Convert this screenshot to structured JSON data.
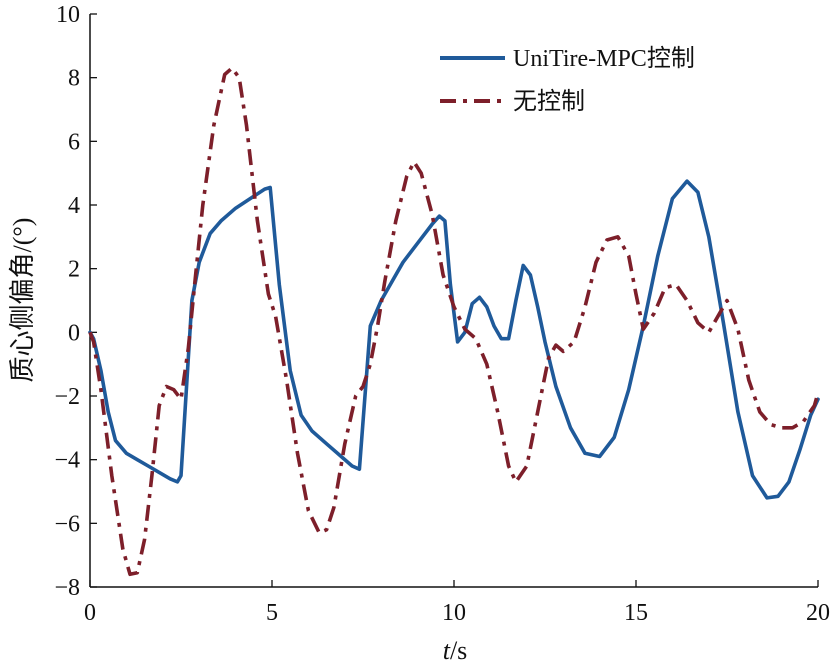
{
  "chart_data": {
    "type": "line",
    "title": "",
    "xlabel_italic": "t",
    "xlabel_unit": "/s",
    "ylabel": "质心侧偏角/(°)",
    "xlim": [
      0,
      20
    ],
    "ylim": [
      -8,
      10
    ],
    "xticks": [
      0,
      5,
      10,
      15,
      20
    ],
    "yticks": [
      -8,
      -6,
      -4,
      -2,
      0,
      2,
      4,
      6,
      8,
      10
    ],
    "ytick_labels": [
      "−8",
      "−6",
      "−4",
      "−2",
      "0",
      "2",
      "4",
      "6",
      "8",
      "10"
    ],
    "grid": false,
    "legend_position": "top-right",
    "series": [
      {
        "name": "UniTire-MPC控制",
        "color": "#1f5a9a",
        "style": "solid",
        "x": [
          0,
          0.1,
          0.3,
          0.5,
          0.7,
          1.0,
          1.3,
          1.6,
          1.9,
          2.2,
          2.4,
          2.5,
          2.8,
          3.0,
          3.3,
          3.6,
          4.0,
          4.4,
          4.8,
          4.95,
          5.2,
          5.5,
          5.8,
          6.1,
          6.5,
          6.9,
          7.2,
          7.4,
          7.7,
          8.0,
          8.3,
          8.6,
          9.0,
          9.4,
          9.6,
          9.75,
          9.9,
          10.1,
          10.3,
          10.5,
          10.7,
          10.9,
          11.1,
          11.3,
          11.5,
          11.7,
          11.9,
          12.1,
          12.3,
          12.5,
          12.8,
          13.2,
          13.6,
          14.0,
          14.4,
          14.8,
          15.2,
          15.6,
          16.0,
          16.4,
          16.7,
          17.0,
          17.4,
          17.8,
          18.2,
          18.6,
          18.9,
          19.2,
          19.5,
          19.8,
          20.0
        ],
        "y": [
          0,
          -0.2,
          -1.2,
          -2.5,
          -3.4,
          -3.8,
          -4.0,
          -4.2,
          -4.4,
          -4.6,
          -4.7,
          -4.5,
          1.0,
          2.2,
          3.1,
          3.5,
          3.9,
          4.2,
          4.5,
          4.55,
          1.5,
          -1.2,
          -2.6,
          -3.1,
          -3.5,
          -3.9,
          -4.2,
          -4.3,
          0.2,
          1.0,
          1.6,
          2.2,
          2.8,
          3.4,
          3.65,
          3.5,
          1.5,
          -0.3,
          0.0,
          0.9,
          1.1,
          0.8,
          0.2,
          -0.2,
          -0.2,
          1.0,
          2.1,
          1.8,
          0.8,
          -0.3,
          -1.7,
          -3.0,
          -3.8,
          -3.9,
          -3.3,
          -1.8,
          0.2,
          2.4,
          4.2,
          4.75,
          4.4,
          3.0,
          0.3,
          -2.5,
          -4.5,
          -5.2,
          -5.15,
          -4.7,
          -3.7,
          -2.6,
          -2.1
        ]
      },
      {
        "name": "无控制",
        "color": "#7d1f2a",
        "style": "dashdot",
        "x": [
          0,
          0.1,
          0.3,
          0.6,
          0.9,
          1.1,
          1.3,
          1.5,
          1.7,
          1.9,
          2.1,
          2.3,
          2.5,
          2.7,
          2.9,
          3.1,
          3.4,
          3.7,
          3.9,
          4.1,
          4.3,
          4.6,
          4.9,
          5.1,
          5.4,
          5.7,
          6.0,
          6.3,
          6.5,
          6.7,
          7.0,
          7.3,
          7.5,
          7.7,
          7.9,
          8.1,
          8.4,
          8.7,
          8.9,
          9.1,
          9.4,
          9.7,
          10.0,
          10.3,
          10.6,
          10.9,
          11.2,
          11.5,
          11.7,
          12.0,
          12.3,
          12.6,
          12.8,
          13.0,
          13.3,
          13.6,
          13.9,
          14.2,
          14.5,
          14.8,
          15.0,
          15.2,
          15.5,
          15.8,
          16.1,
          16.4,
          16.7,
          17.0,
          17.3,
          17.5,
          17.8,
          18.1,
          18.4,
          18.7,
          19.0,
          19.3,
          19.6,
          19.9,
          20.0
        ],
        "y": [
          0,
          -0.3,
          -1.8,
          -4.5,
          -6.8,
          -7.6,
          -7.55,
          -6.5,
          -4.5,
          -2.3,
          -1.7,
          -1.8,
          -2.1,
          -0.5,
          1.8,
          4.0,
          6.5,
          8.1,
          8.3,
          8.0,
          6.5,
          3.5,
          1.2,
          0.5,
          -1.5,
          -3.8,
          -5.6,
          -6.3,
          -6.2,
          -5.5,
          -3.5,
          -2.0,
          -1.7,
          -1.0,
          0.2,
          1.6,
          3.5,
          4.9,
          5.35,
          5.0,
          3.7,
          1.8,
          0.8,
          0.1,
          -0.2,
          -1.0,
          -2.5,
          -4.2,
          -4.7,
          -4.2,
          -2.5,
          -0.8,
          -0.4,
          -0.6,
          -0.3,
          0.8,
          2.2,
          2.9,
          3.0,
          2.4,
          1.2,
          0.1,
          0.6,
          1.4,
          1.5,
          1.0,
          0.3,
          0.0,
          0.6,
          1.0,
          0.1,
          -1.5,
          -2.5,
          -2.9,
          -3.0,
          -3.0,
          -2.8,
          -2.3,
          -1.9
        ]
      }
    ]
  }
}
